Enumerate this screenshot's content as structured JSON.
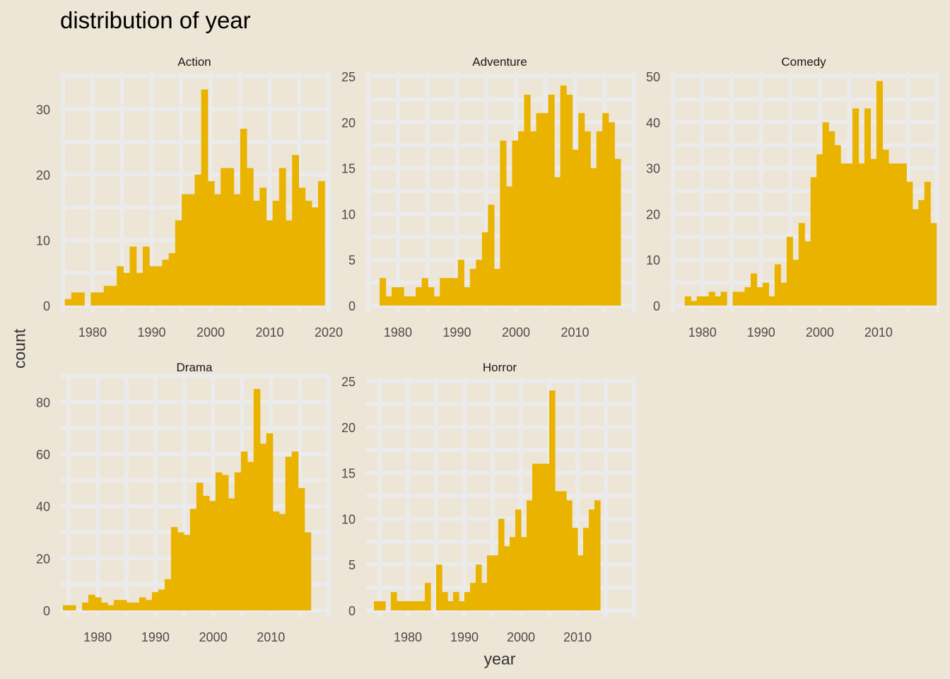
{
  "chart_data": {
    "type": "bar",
    "title": "distribution of year",
    "xlabel": "year",
    "ylabel": "count",
    "grid": true,
    "colors": {
      "background": "#ede5d5",
      "grid": "#ebebeb",
      "bar": "#eab300",
      "text": "#4d4d4d"
    },
    "panels": [
      {
        "name": "Action",
        "xlim": [
          1974.5,
          2020
        ],
        "ylim": [
          0,
          35
        ],
        "xticks": [
          1980,
          1990,
          2000,
          2010,
          2020
        ],
        "yticks": [
          0,
          10,
          20,
          30
        ],
        "x_start": 1975.3,
        "binwidth": 1.1,
        "values": [
          1,
          2,
          2,
          0,
          2,
          2,
          3,
          3,
          6,
          5,
          9,
          5,
          9,
          6,
          6,
          7,
          8,
          13,
          17,
          17,
          20,
          33,
          19,
          17,
          21,
          21,
          17,
          27,
          21,
          16,
          18,
          13,
          16,
          21,
          13,
          23,
          18,
          16,
          15,
          19
        ]
      },
      {
        "name": "Adventure",
        "xlim": [
          1974.5,
          2020
        ],
        "ylim": [
          0,
          25
        ],
        "xticks": [
          1980,
          1990,
          2000,
          2010
        ],
        "yticks": [
          0,
          5,
          10,
          15,
          20,
          25
        ],
        "x_start": 1976.9,
        "binwidth": 1.02,
        "values": [
          3,
          1,
          2,
          2,
          1,
          1,
          2,
          3,
          2,
          1,
          3,
          3,
          3,
          5,
          2,
          4,
          5,
          8,
          11,
          4,
          18,
          13,
          18,
          19,
          23,
          19,
          21,
          21,
          23,
          14,
          24,
          23,
          17,
          21,
          19,
          15,
          19,
          21,
          20,
          16
        ]
      },
      {
        "name": "Comedy",
        "xlim": [
          1974.5,
          2020
        ],
        "ylim": [
          0,
          50
        ],
        "xticks": [
          1980,
          1990,
          2000,
          2010
        ],
        "yticks": [
          0,
          10,
          20,
          30,
          40,
          50
        ],
        "x_start": 1977.0,
        "binwidth": 1.02,
        "values": [
          2,
          1,
          2,
          2,
          3,
          2,
          3,
          0,
          3,
          3,
          4,
          7,
          4,
          5,
          2,
          9,
          5,
          15,
          10,
          18,
          14,
          28,
          33,
          40,
          38,
          35,
          31,
          31,
          43,
          31,
          43,
          32,
          49,
          34,
          31,
          31,
          31,
          27,
          21,
          23,
          27,
          18
        ]
      },
      {
        "name": "Drama",
        "xlim": [
          1973.5,
          2020
        ],
        "ylim": [
          0,
          88
        ],
        "xticks": [
          1980,
          1990,
          2000,
          2010
        ],
        "yticks": [
          0,
          20,
          40,
          60,
          80
        ],
        "x_start": 1974.0,
        "binwidth": 1.1,
        "values": [
          2,
          2,
          0,
          3,
          6,
          5,
          3,
          2,
          4,
          4,
          3,
          3,
          5,
          4,
          7,
          8,
          12,
          32,
          30,
          29,
          39,
          49,
          44,
          42,
          53,
          52,
          43,
          53,
          61,
          57,
          85,
          64,
          68,
          38,
          37,
          59,
          61,
          47,
          30
        ]
      },
      {
        "name": "Horror",
        "xlim": [
          1972.5,
          2020
        ],
        "ylim": [
          0,
          25
        ],
        "xticks": [
          1980,
          1990,
          2000,
          2010
        ],
        "yticks": [
          0,
          5,
          10,
          15,
          20,
          25
        ],
        "x_start": 1974.0,
        "binwidth": 1.0,
        "values": [
          1,
          1,
          0,
          2,
          1,
          1,
          1,
          1,
          1,
          3,
          0,
          5,
          2,
          1,
          2,
          1,
          2,
          3,
          5,
          3,
          6,
          6,
          10,
          7,
          8,
          11,
          8,
          12,
          16,
          16,
          16,
          24,
          13,
          13,
          12,
          9,
          6,
          9,
          11,
          12
        ]
      }
    ]
  }
}
